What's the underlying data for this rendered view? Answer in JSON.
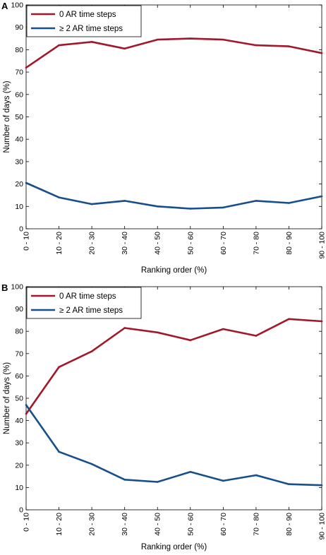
{
  "chart_data": [
    {
      "panel_label": "A",
      "type": "line",
      "title": "",
      "xlabel": "Ranking order (%)",
      "ylabel": "Number of days (%)",
      "categories": [
        "0 - 10",
        "10 - 20",
        "20 - 30",
        "30 - 40",
        "40 - 50",
        "50 - 60",
        "60 - 70",
        "70 - 80",
        "80 - 90",
        "90 - 100"
      ],
      "ylim": [
        0,
        100
      ],
      "yticks": [
        0,
        10,
        20,
        30,
        40,
        50,
        60,
        70,
        80,
        90,
        100
      ],
      "grid": false,
      "legend_position": "top-left",
      "series": [
        {
          "name": "0 AR time steps",
          "color": "#a3172a",
          "values": [
            72,
            82,
            83.5,
            80.5,
            84.5,
            85,
            84.5,
            82,
            81.5,
            78.5
          ]
        },
        {
          "name": "≥ 2 AR time steps",
          "color": "#174f8c",
          "values": [
            20.5,
            14,
            11,
            12.5,
            10,
            9,
            9.5,
            12.5,
            11.5,
            14.5
          ]
        }
      ]
    },
    {
      "panel_label": "B",
      "type": "line",
      "title": "",
      "xlabel": "Ranking order (%)",
      "ylabel": "Number of days (%)",
      "categories": [
        "0 - 10",
        "10 - 20",
        "20 - 30",
        "30 - 40",
        "40 - 50",
        "50 - 60",
        "60 - 70",
        "70 - 80",
        "80 - 90",
        "90 - 100"
      ],
      "ylim": [
        0,
        100
      ],
      "yticks": [
        0,
        10,
        20,
        30,
        40,
        50,
        60,
        70,
        80,
        90,
        100
      ],
      "grid": false,
      "legend_position": "top-left",
      "series": [
        {
          "name": "0 AR time steps",
          "color": "#a3172a",
          "values": [
            43,
            64,
            71,
            81.5,
            79.5,
            76,
            81,
            78,
            85.5,
            84.5
          ]
        },
        {
          "name": "≥ 2 AR time steps",
          "color": "#174f8c",
          "values": [
            47,
            26,
            20.5,
            13.5,
            12.5,
            17,
            13,
            15.5,
            11.5,
            11
          ]
        }
      ]
    }
  ]
}
